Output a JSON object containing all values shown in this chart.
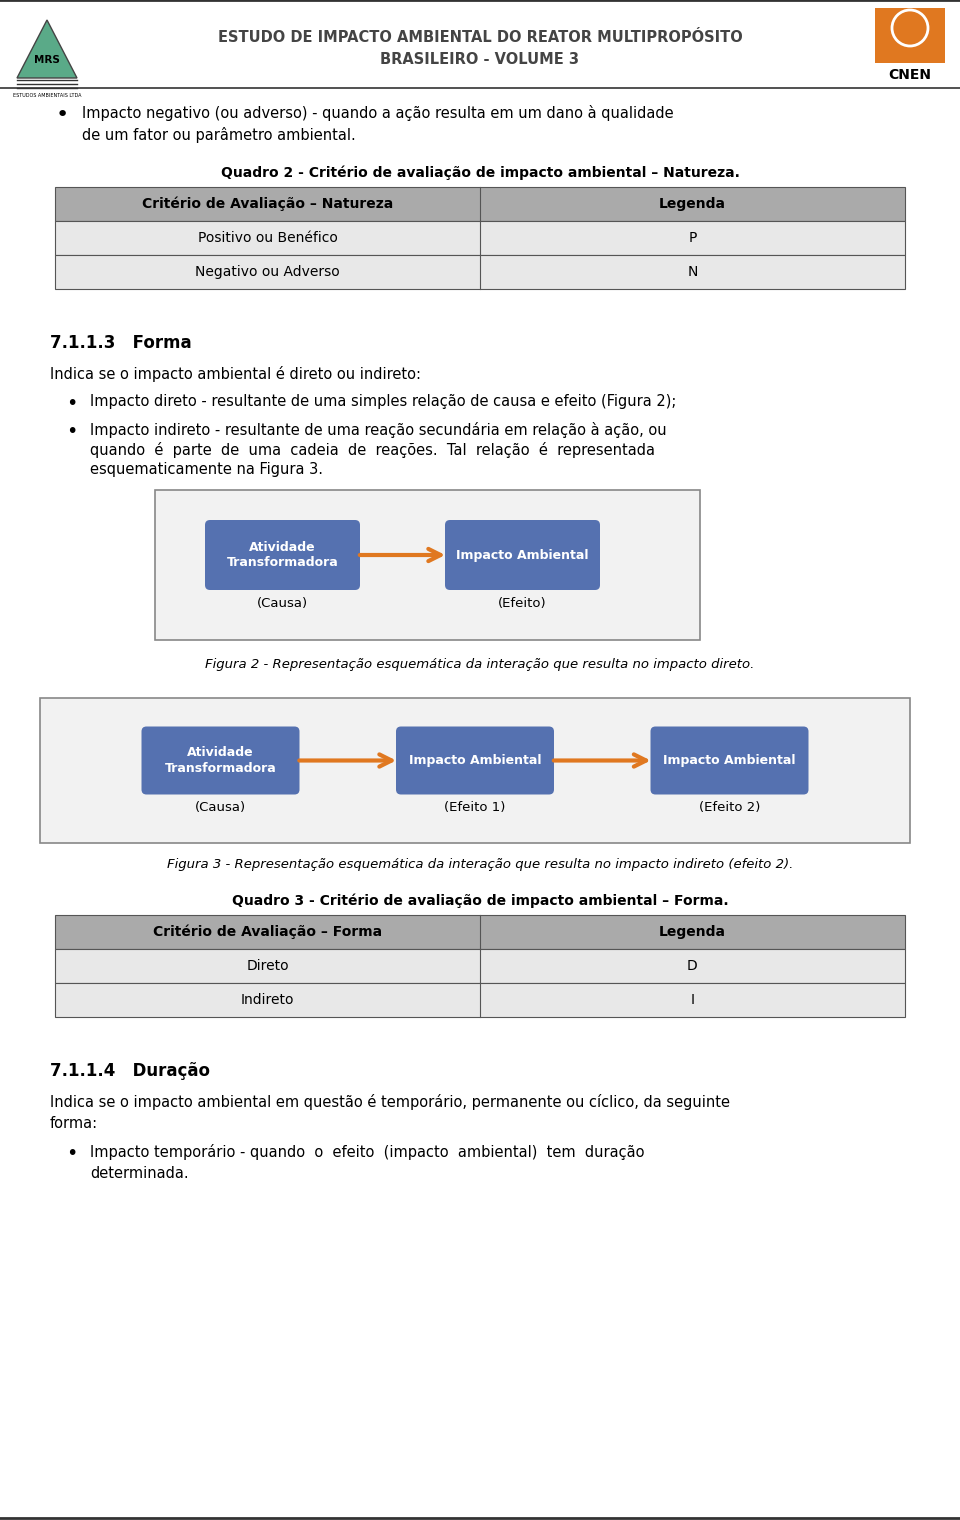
{
  "header_title_line1": "ESTUDO DE IMPACTO AMBIENTAL DO REATOR MULTIPROPÓSITO",
  "header_title_line2": "BRASILEIRO - VOLUME 3",
  "page_bg": "#ffffff",
  "table1_title": "Quadro 2 - Critério de avaliação de impacto ambiental – Natureza.",
  "table1_header": [
    "Critério de Avaliação – Natureza",
    "Legenda"
  ],
  "table1_rows": [
    [
      "Positivo ou Benéfico",
      "P"
    ],
    [
      "Negativo ou Adverso",
      "N"
    ]
  ],
  "section1_title": "7.1.1.3   Forma",
  "body1": "Indica se o impacto ambiental é direto ou indireto:",
  "bullet2": "Impacto direto - resultante de uma simples relação de causa e efeito (Figura 2);",
  "bullet3_l1": "Impacto indireto - resultante de uma reação secundária em relação à ação, ou",
  "bullet3_l2": "quando  é  parte  de  uma  cadeia  de  reações.  Tal  relação  é  representada",
  "bullet3_l3": "esquematicamente na Figura 3.",
  "fig2_b1": "Atividade\nTransformadora",
  "fig2_b2": "Impacto Ambiental",
  "fig2_lbl1": "(Causa)",
  "fig2_lbl2": "(Efeito)",
  "fig2_cap": "Figura 2 - Representação esquemática da interação que resulta no impacto direto.",
  "fig3_b1": "Atividade\nTransformadora",
  "fig3_b2": "Impacto Ambiental",
  "fig3_b3": "Impacto Ambiental",
  "fig3_lbl1": "(Causa)",
  "fig3_lbl2": "(Efeito 1)",
  "fig3_lbl3": "(Efeito 2)",
  "fig3_cap": "Figura 3 - Representação esquemática da interação que resulta no impacto indireto (efeito 2).",
  "table2_title": "Quadro 3 - Critério de avaliação de impacto ambiental – Forma.",
  "table2_header": [
    "Critério de Avaliação – Forma",
    "Legenda"
  ],
  "table2_rows": [
    [
      "Direto",
      "D"
    ],
    [
      "Indireto",
      "I"
    ]
  ],
  "section2_title": "7.1.1.4   Duração",
  "body2_l1": "Indica se o impacto ambiental em questão é temporário, permanente ou cíclico, da seguinte",
  "body2_l2": "forma:",
  "bullet4_l1": "Impacto temporário - quando  o  efeito  (impacto  ambiental)  tem  duração",
  "bullet4_l2": "determinada.",
  "box_color": "#5571b0",
  "arrow_color": "#e07820",
  "table_hdr_bg": "#aaaaaa",
  "table_row_bg": "#e8e8e8",
  "diag_bg": "#f2f2f2",
  "diag_border": "#888888"
}
